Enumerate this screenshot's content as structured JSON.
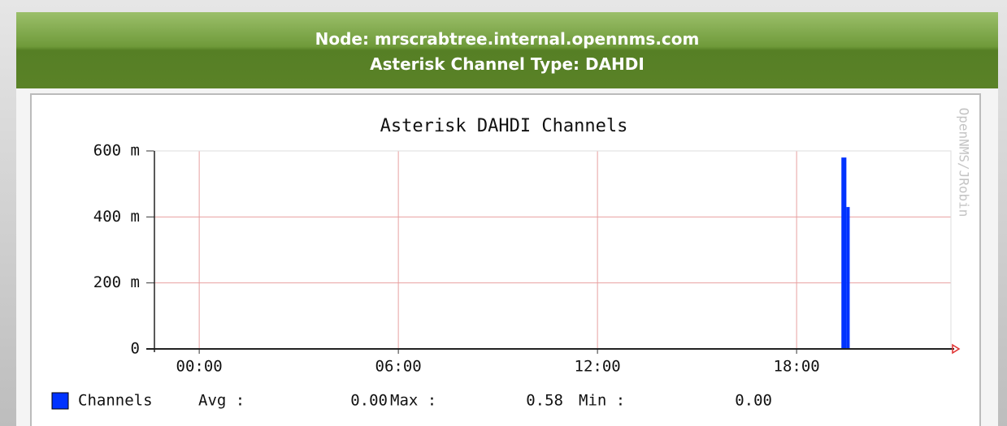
{
  "header": {
    "node": "Node: mrscrabtree.internal.opennms.com",
    "subtitle": "Asterisk Channel Type: DAHDI"
  },
  "watermark": "OpenNMS/JRobin",
  "chart_data": {
    "type": "histogram",
    "title": "Asterisk DAHDI Channels",
    "series": [
      {
        "name": "Channels",
        "color": "#0033ff",
        "bins": [
          19.35,
          19.5,
          19.6
        ],
        "values": [
          0.58,
          0.43
        ]
      }
    ],
    "xlim": [
      -1.35,
      22.65
    ],
    "xticks": [
      {
        "value": 0,
        "label": "00:00"
      },
      {
        "value": 6,
        "label": "06:00"
      },
      {
        "value": 12,
        "label": "12:00"
      },
      {
        "value": 18,
        "label": "18:00"
      }
    ],
    "ylim": [
      0,
      0.6
    ],
    "yticks": [
      0,
      {
        "value": 0.2,
        "label": "200 m"
      },
      {
        "value": 0.4,
        "label": "400 m"
      },
      {
        "value": 0.6,
        "label": "600 m"
      }
    ],
    "grid": true,
    "stats": [
      {
        "label": "Avg :",
        "value": "0.00"
      },
      {
        "label": "Max :",
        "value": "0.58"
      },
      {
        "label": "Min :",
        "value": "0.00"
      }
    ]
  }
}
